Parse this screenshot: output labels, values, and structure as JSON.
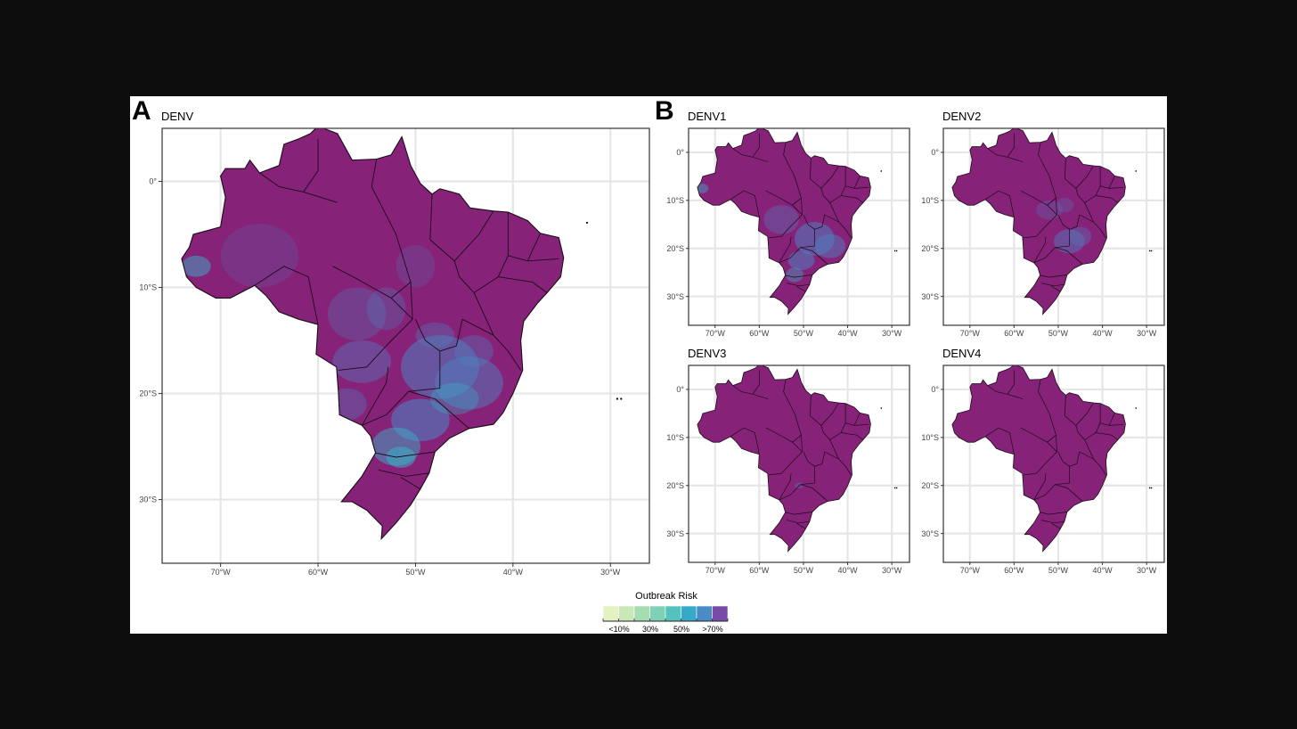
{
  "panels": {
    "a": {
      "letter": "A",
      "title": "DENV"
    },
    "b": {
      "letter": "B"
    },
    "small": [
      {
        "title": "DENV1"
      },
      {
        "title": "DENV2"
      },
      {
        "title": "DENV3"
      },
      {
        "title": "DENV4"
      }
    ]
  },
  "axes": {
    "x_ticks": [
      "70°W",
      "60°W",
      "50°W",
      "40°W",
      "30°W"
    ],
    "y_ticks": [
      "0°",
      "10°S",
      "20°S",
      "30°S"
    ]
  },
  "legend": {
    "title": "Outbreak Risk",
    "labels": [
      "<10%",
      "30%",
      "50%",
      ">70%"
    ],
    "colors": [
      "#e4f1c3",
      "#c8e8b8",
      "#a5dcb4",
      "#7fd0b6",
      "#55c2c0",
      "#35aac8",
      "#4a8ac6",
      "#7a4aa8"
    ]
  },
  "colors": {
    "base": "#862378",
    "low_risk": "#4f7fc0",
    "mid_risk": "#3aaec6",
    "background": "#0d0d0d"
  },
  "chart_data": {
    "type": "map",
    "region": "Brazil",
    "variable": "Outbreak Risk",
    "maps": [
      "DENV",
      "DENV1",
      "DENV2",
      "DENV3",
      "DENV4"
    ],
    "lon_range": [
      -76,
      -26
    ],
    "lat_range": [
      -36,
      5
    ],
    "legend_placement": "bottom-center"
  }
}
